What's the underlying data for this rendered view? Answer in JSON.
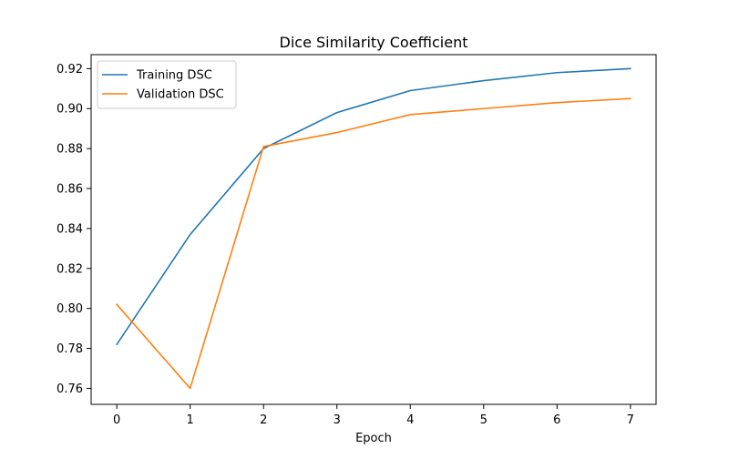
{
  "chart_data": {
    "type": "line",
    "title": "Dice Similarity Coefficient",
    "xlabel": "Epoch",
    "ylabel": "",
    "x": [
      0,
      1,
      2,
      3,
      4,
      5,
      6,
      7
    ],
    "xlim": [
      -0.35,
      7.35
    ],
    "ylim": [
      0.752,
      0.927
    ],
    "xticks": [
      0,
      1,
      2,
      3,
      4,
      5,
      6,
      7
    ],
    "yticks": [
      0.76,
      0.78,
      0.8,
      0.82,
      0.84,
      0.86,
      0.88,
      0.9,
      0.92
    ],
    "grid": false,
    "legend_position": "top-left",
    "series": [
      {
        "name": "Training DSC",
        "color": "#1f77b4",
        "values": [
          0.782,
          0.837,
          0.88,
          0.898,
          0.909,
          0.914,
          0.918,
          0.92
        ]
      },
      {
        "name": "Validation DSC",
        "color": "#ff7f0e",
        "values": [
          0.802,
          0.76,
          0.881,
          0.888,
          0.897,
          0.9,
          0.903,
          0.905
        ]
      }
    ]
  }
}
